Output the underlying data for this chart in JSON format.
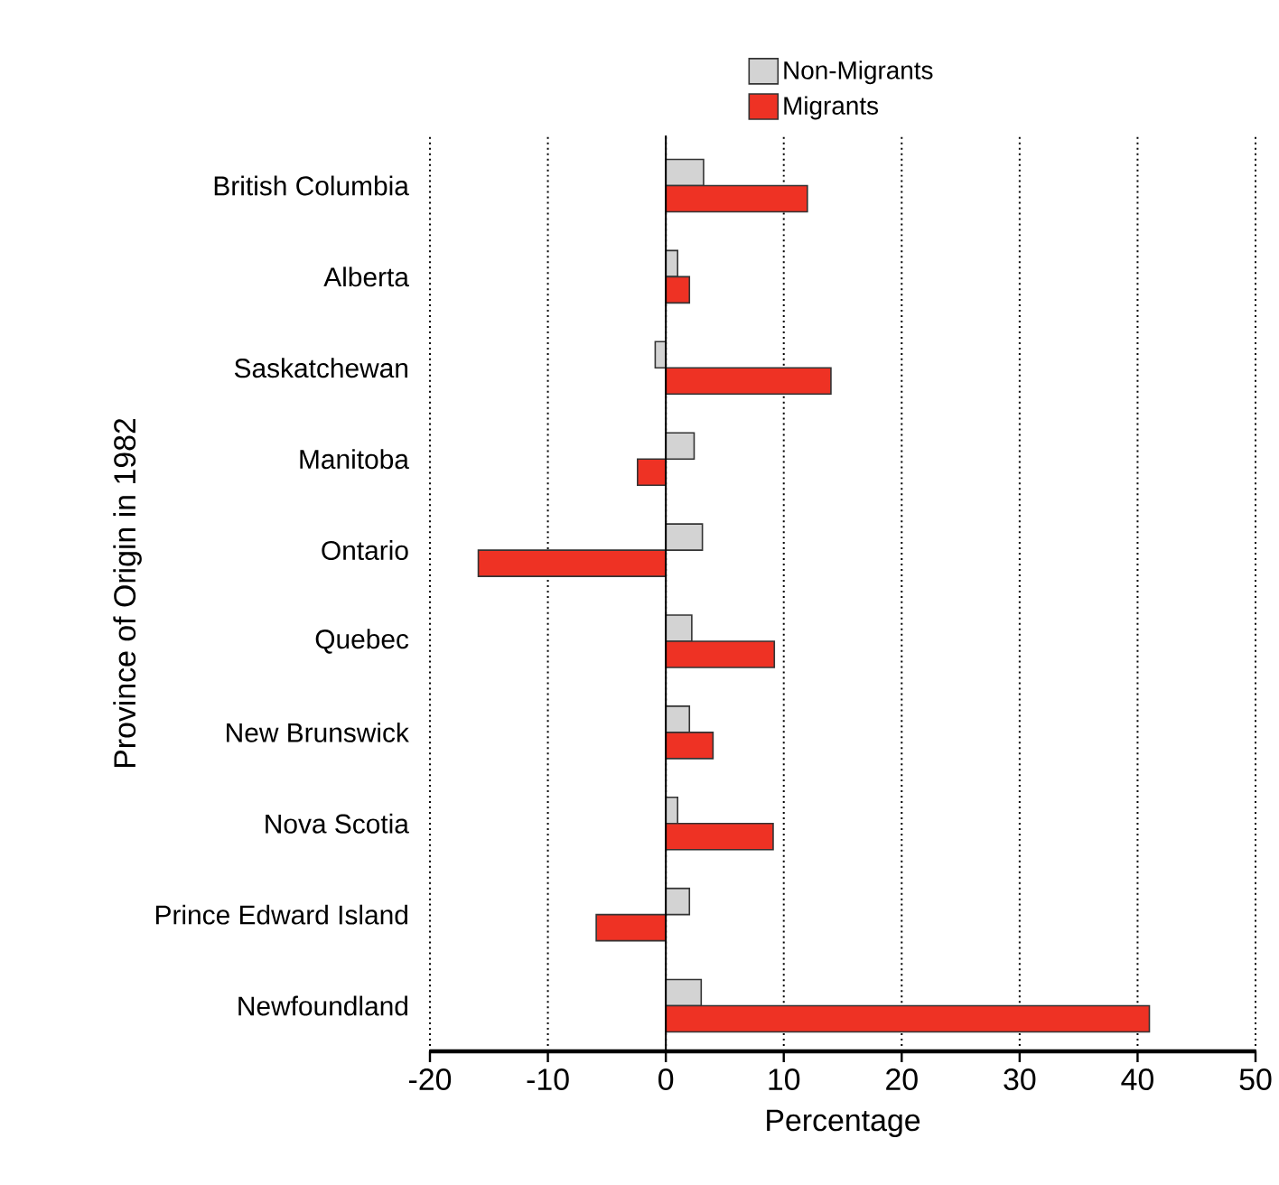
{
  "chart_data": {
    "type": "bar",
    "orientation": "horizontal",
    "xlabel": "Percentage",
    "ylabel": "Province of Origin in 1982",
    "categories": [
      "British Columbia",
      "Alberta",
      "Saskatchewan",
      "Manitoba",
      "Ontario",
      "Quebec",
      "New Brunswick",
      "Nova Scotia",
      "Prince Edward Island",
      "Newfoundland"
    ],
    "series": [
      {
        "name": "Non-Migrants",
        "color": "#d3d3d3",
        "values": [
          3.2,
          1.0,
          -0.9,
          2.4,
          3.1,
          2.2,
          2.0,
          1.0,
          2.0,
          3.0
        ]
      },
      {
        "name": "Migrants",
        "color": "#ee3224",
        "values": [
          12.0,
          2.0,
          14.0,
          -2.4,
          -15.9,
          9.2,
          4.0,
          9.1,
          -5.9,
          41.0
        ]
      }
    ],
    "xlim": [
      -20,
      50
    ],
    "xticks": [
      -20,
      -10,
      0,
      10,
      20,
      30,
      40,
      50
    ],
    "grid": "x",
    "legend": "top"
  }
}
